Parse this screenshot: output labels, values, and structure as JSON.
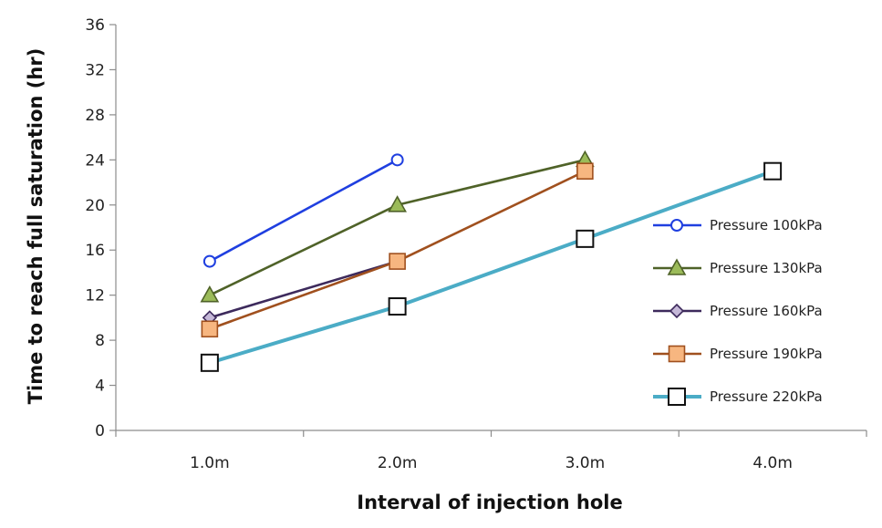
{
  "chart_data": {
    "type": "line",
    "title": "",
    "xlabel": "Interval of injection hole",
    "ylabel": "Time to reach full saturation (hr)",
    "categories": [
      "1.0m",
      "2.0m",
      "3.0m",
      "4.0m"
    ],
    "ylim": [
      0,
      36
    ],
    "yticks": [
      0,
      4,
      8,
      12,
      16,
      20,
      24,
      28,
      32,
      36
    ],
    "grid": false,
    "legend_position": "right",
    "series": [
      {
        "name": "Pressure 100kPa",
        "values": [
          15,
          24,
          null,
          null
        ],
        "color": "#1f3fe0",
        "marker": "circle",
        "marker_fill": "#ffffff"
      },
      {
        "name": "Pressure 130kPa",
        "values": [
          12,
          20,
          24,
          null
        ],
        "color": "#4f6228",
        "marker": "triangle",
        "marker_fill": "#9bbb59"
      },
      {
        "name": "Pressure 160kPa",
        "values": [
          10,
          15,
          null,
          null
        ],
        "color": "#3d2a5c",
        "marker": "diamond",
        "marker_fill": "#c5b8d8"
      },
      {
        "name": "Pressure 190kPa",
        "values": [
          9,
          15,
          23,
          null
        ],
        "color": "#a0501e",
        "marker": "square",
        "marker_fill": "#f7b680"
      },
      {
        "name": "Pressure 220kPa",
        "values": [
          6,
          11,
          17,
          23
        ],
        "color": "#4bacc6",
        "marker": "square",
        "marker_fill": "#ffffff"
      }
    ]
  }
}
